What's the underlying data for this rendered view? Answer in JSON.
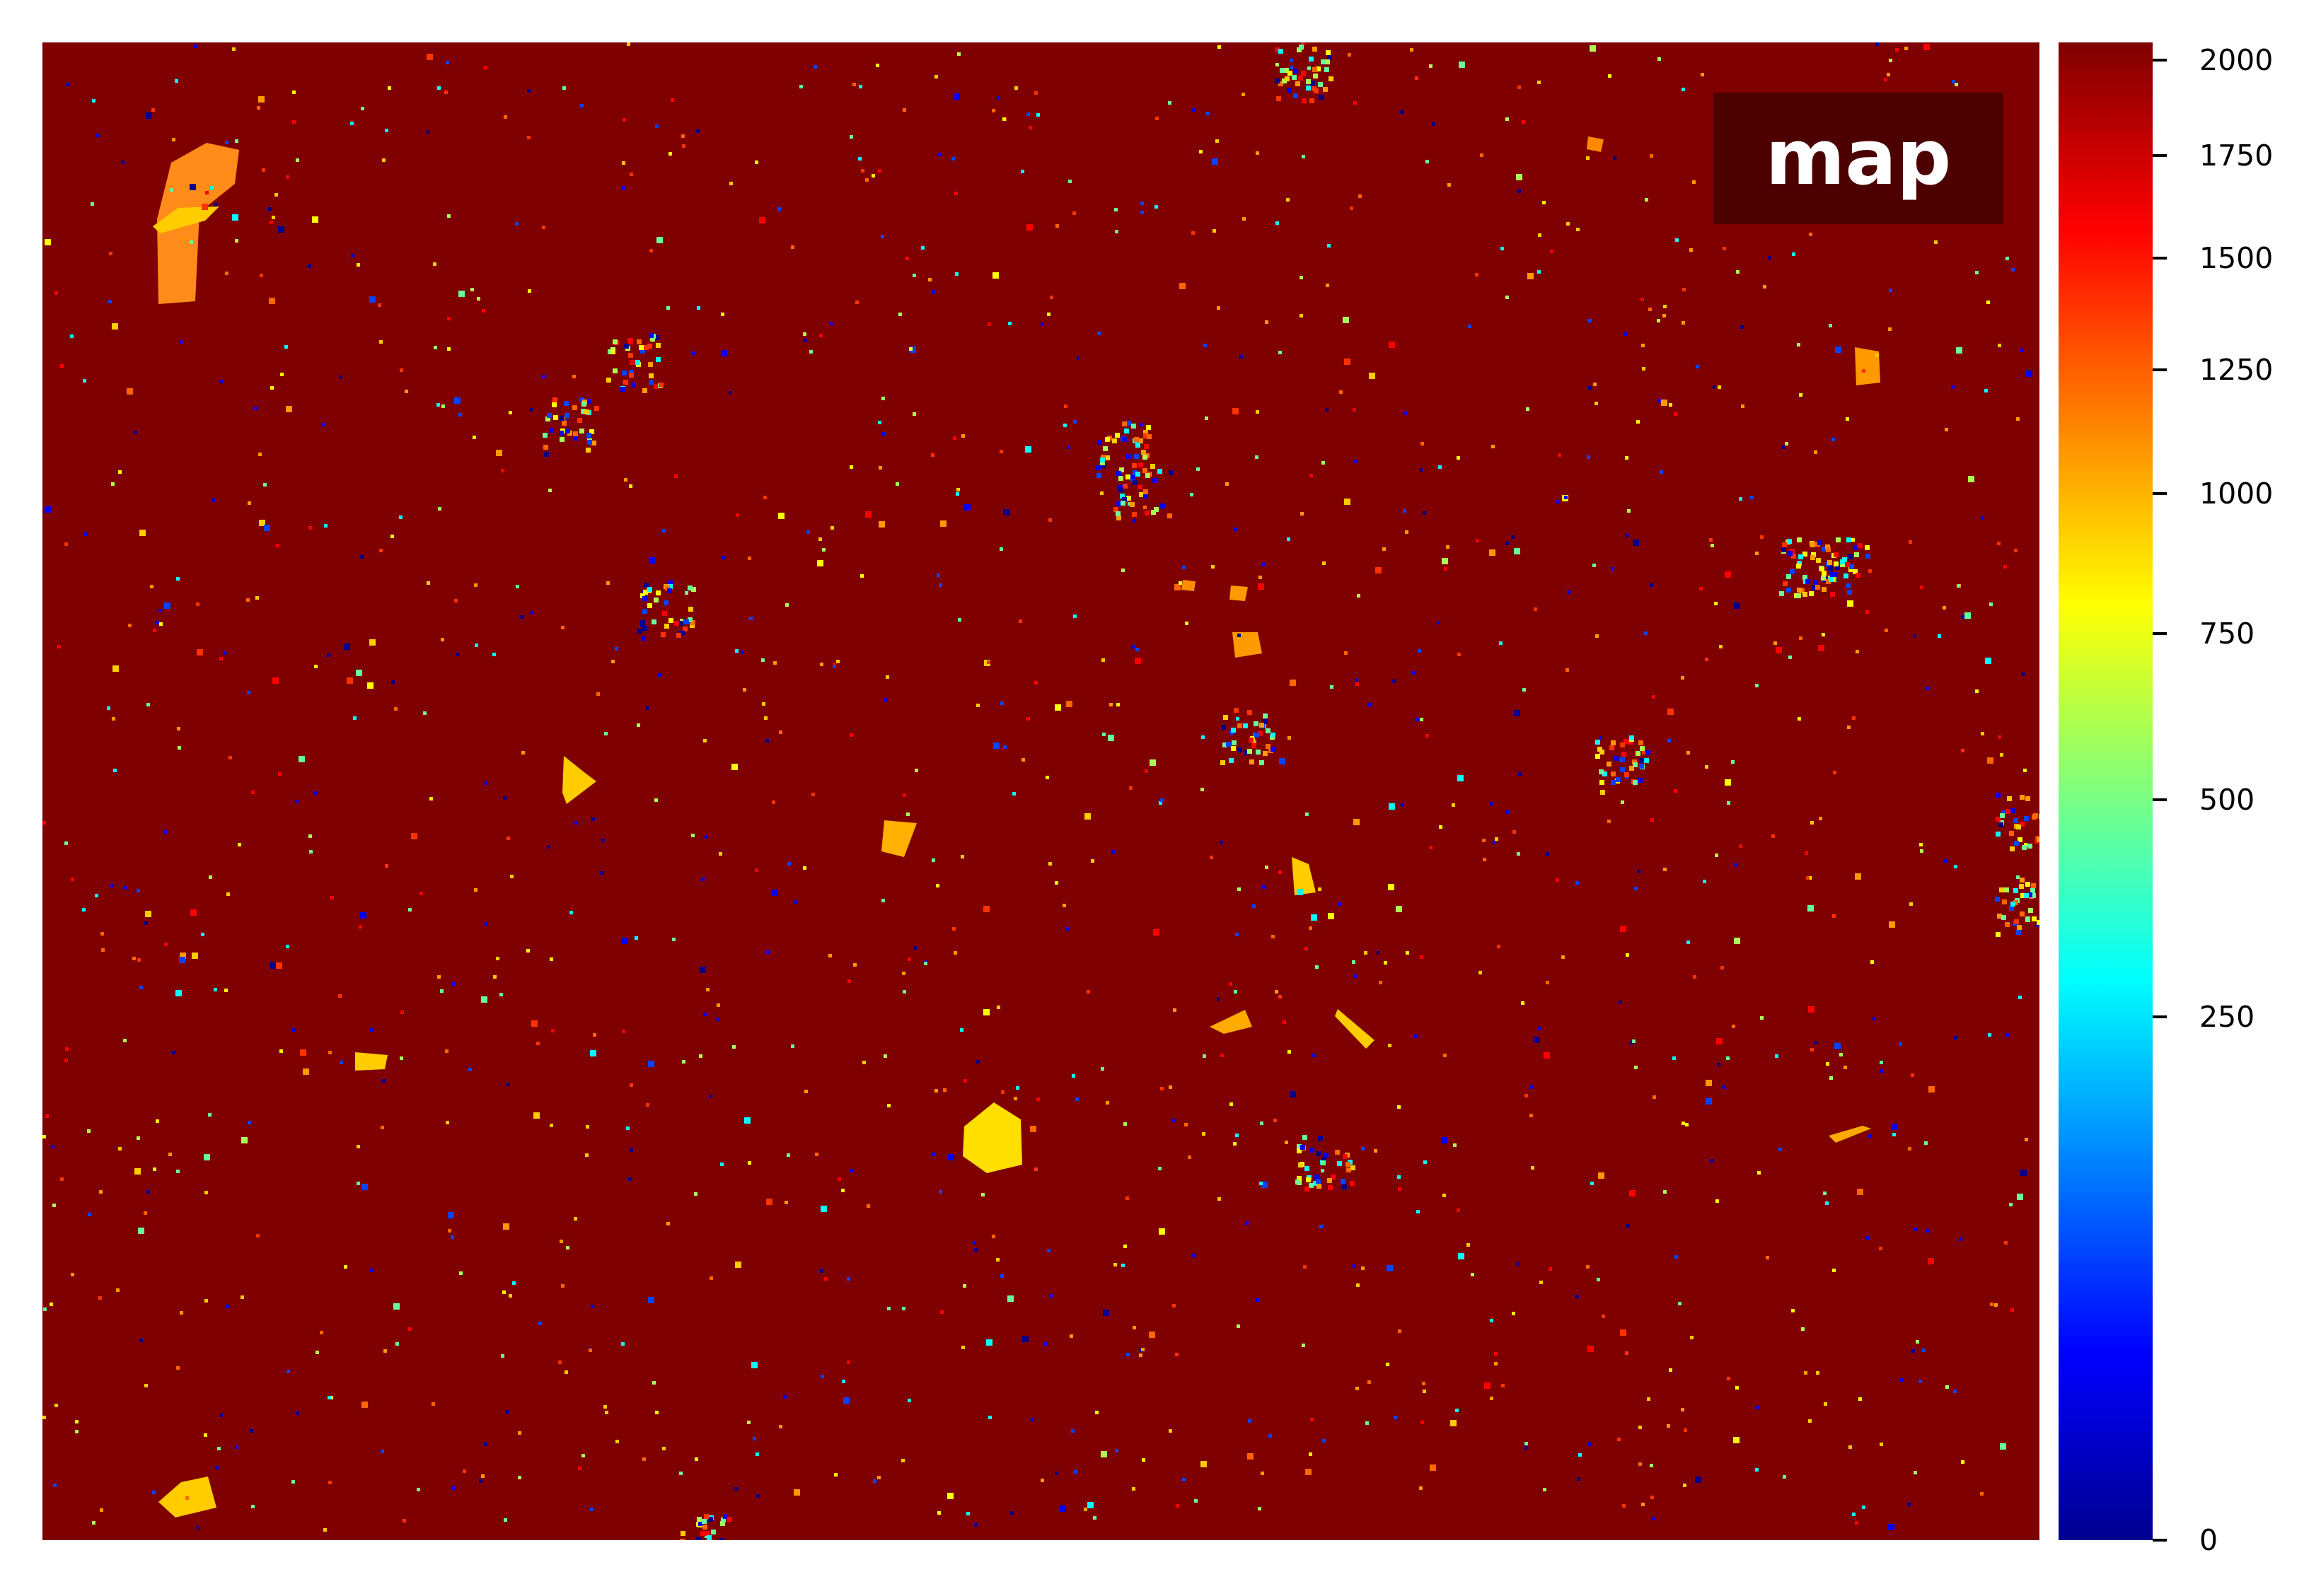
{
  "chart_data": {
    "type": "heatmap",
    "label": "map",
    "colormap": "jet",
    "background_value": 2048,
    "colorbar": {
      "range": [
        0,
        2048
      ],
      "scale": "power",
      "ticks": [
        0,
        250,
        500,
        750,
        1000,
        1250,
        1500,
        1750,
        2000
      ],
      "tick_labels": [
        "0",
        "250",
        "500",
        "750",
        "1000",
        "1250",
        "1500",
        "1750",
        "2000"
      ]
    },
    "axes_visible": false,
    "colors": {
      "background": "#7f0000",
      "label_box": "#4d0000",
      "label_text": "#ffffff"
    }
  }
}
